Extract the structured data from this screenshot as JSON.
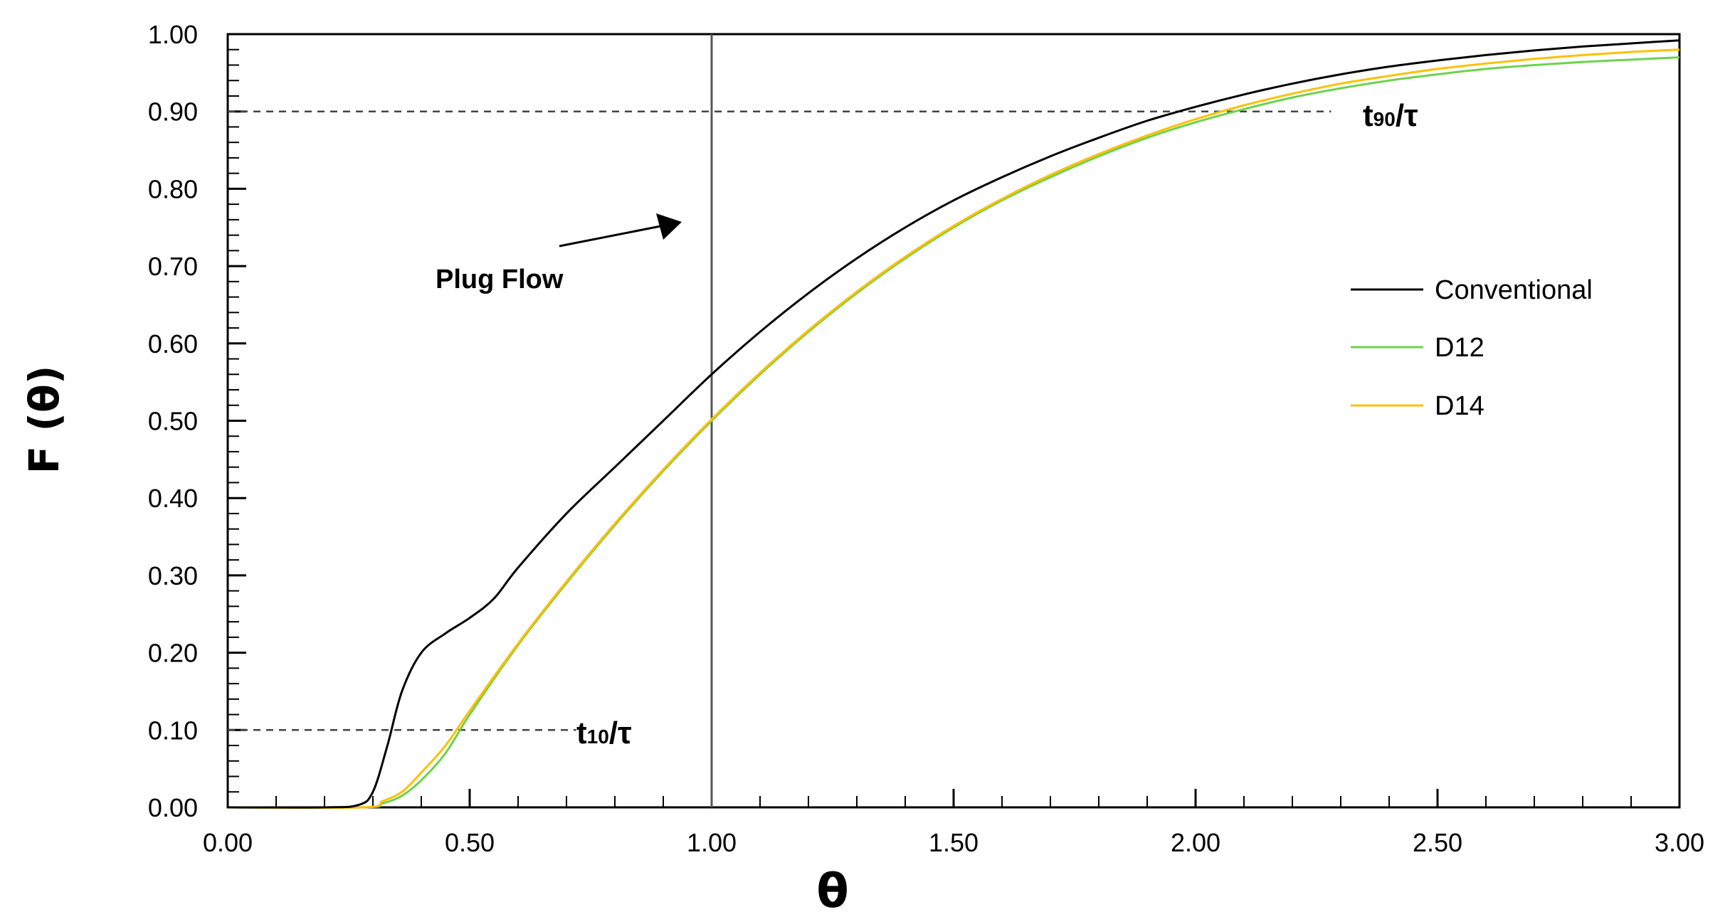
{
  "chart_data": {
    "type": "line",
    "xlabel": "θ",
    "ylabel": "F (θ)",
    "xlim": [
      0,
      3
    ],
    "ylim": [
      0,
      1
    ],
    "x_ticks": [
      "0.00",
      "0.50",
      "1.00",
      "1.50",
      "2.00",
      "2.50",
      "3.00"
    ],
    "y_ticks": [
      "0.00",
      "0.10",
      "0.20",
      "0.30",
      "0.40",
      "0.50",
      "0.60",
      "0.70",
      "0.80",
      "0.90",
      "1.00"
    ],
    "grid": false,
    "legend_position": "right",
    "series": [
      {
        "name": "Conventional",
        "color": "#000000",
        "points": [
          [
            0,
            0
          ],
          [
            0.2,
            0
          ],
          [
            0.27,
            0.003
          ],
          [
            0.3,
            0.02
          ],
          [
            0.33,
            0.08
          ],
          [
            0.36,
            0.15
          ],
          [
            0.4,
            0.2
          ],
          [
            0.45,
            0.225
          ],
          [
            0.5,
            0.245
          ],
          [
            0.55,
            0.27
          ],
          [
            0.6,
            0.31
          ],
          [
            0.7,
            0.38
          ],
          [
            0.8,
            0.44
          ],
          [
            0.9,
            0.5
          ],
          [
            1.0,
            0.56
          ],
          [
            1.1,
            0.615
          ],
          [
            1.2,
            0.665
          ],
          [
            1.3,
            0.71
          ],
          [
            1.4,
            0.75
          ],
          [
            1.5,
            0.785
          ],
          [
            1.6,
            0.815
          ],
          [
            1.7,
            0.842
          ],
          [
            1.8,
            0.866
          ],
          [
            1.9,
            0.888
          ],
          [
            2.0,
            0.906
          ],
          [
            2.1,
            0.922
          ],
          [
            2.2,
            0.936
          ],
          [
            2.3,
            0.948
          ],
          [
            2.4,
            0.958
          ],
          [
            2.5,
            0.966
          ],
          [
            2.6,
            0.973
          ],
          [
            2.7,
            0.979
          ],
          [
            2.8,
            0.984
          ],
          [
            2.9,
            0.988
          ],
          [
            3.0,
            0.992
          ]
        ]
      },
      {
        "name": "D12",
        "color": "#6dd24f",
        "points": [
          [
            0,
            0
          ],
          [
            0.28,
            0
          ],
          [
            0.32,
            0.005
          ],
          [
            0.36,
            0.015
          ],
          [
            0.4,
            0.035
          ],
          [
            0.45,
            0.07
          ],
          [
            0.5,
            0.12
          ],
          [
            0.6,
            0.21
          ],
          [
            0.7,
            0.29
          ],
          [
            0.8,
            0.365
          ],
          [
            0.9,
            0.435
          ],
          [
            1.0,
            0.5
          ],
          [
            1.1,
            0.56
          ],
          [
            1.2,
            0.615
          ],
          [
            1.3,
            0.665
          ],
          [
            1.4,
            0.71
          ],
          [
            1.5,
            0.75
          ],
          [
            1.6,
            0.785
          ],
          [
            1.7,
            0.815
          ],
          [
            1.8,
            0.842
          ],
          [
            1.9,
            0.866
          ],
          [
            2.0,
            0.886
          ],
          [
            2.1,
            0.903
          ],
          [
            2.2,
            0.918
          ],
          [
            2.3,
            0.93
          ],
          [
            2.4,
            0.94
          ],
          [
            2.5,
            0.948
          ],
          [
            2.6,
            0.955
          ],
          [
            2.7,
            0.96
          ],
          [
            2.8,
            0.964
          ],
          [
            2.9,
            0.967
          ],
          [
            3.0,
            0.97
          ]
        ]
      },
      {
        "name": "D14",
        "color": "#ffc000",
        "points": [
          [
            0,
            0
          ],
          [
            0.28,
            0
          ],
          [
            0.32,
            0.008
          ],
          [
            0.36,
            0.02
          ],
          [
            0.4,
            0.045
          ],
          [
            0.45,
            0.08
          ],
          [
            0.5,
            0.125
          ],
          [
            0.6,
            0.212
          ],
          [
            0.7,
            0.292
          ],
          [
            0.8,
            0.367
          ],
          [
            0.9,
            0.437
          ],
          [
            1.0,
            0.502
          ],
          [
            1.1,
            0.562
          ],
          [
            1.2,
            0.617
          ],
          [
            1.3,
            0.667
          ],
          [
            1.4,
            0.712
          ],
          [
            1.5,
            0.752
          ],
          [
            1.6,
            0.787
          ],
          [
            1.7,
            0.818
          ],
          [
            1.8,
            0.845
          ],
          [
            1.9,
            0.869
          ],
          [
            2.0,
            0.89
          ],
          [
            2.1,
            0.908
          ],
          [
            2.2,
            0.923
          ],
          [
            2.3,
            0.936
          ],
          [
            2.4,
            0.946
          ],
          [
            2.5,
            0.955
          ],
          [
            2.6,
            0.962
          ],
          [
            2.7,
            0.968
          ],
          [
            2.8,
            0.973
          ],
          [
            2.9,
            0.977
          ],
          [
            3.0,
            0.98
          ]
        ]
      }
    ],
    "reference_lines": {
      "plug_flow_x": 1.0,
      "t10_y": 0.1,
      "t90_y": 0.9
    },
    "annotations": {
      "plug_flow": "Plug Flow",
      "t10_base": "t",
      "t10_sub": "10",
      "t10_rest": "/τ",
      "t90_base": "t",
      "t90_sub": "90",
      "t90_rest": "/τ"
    }
  }
}
